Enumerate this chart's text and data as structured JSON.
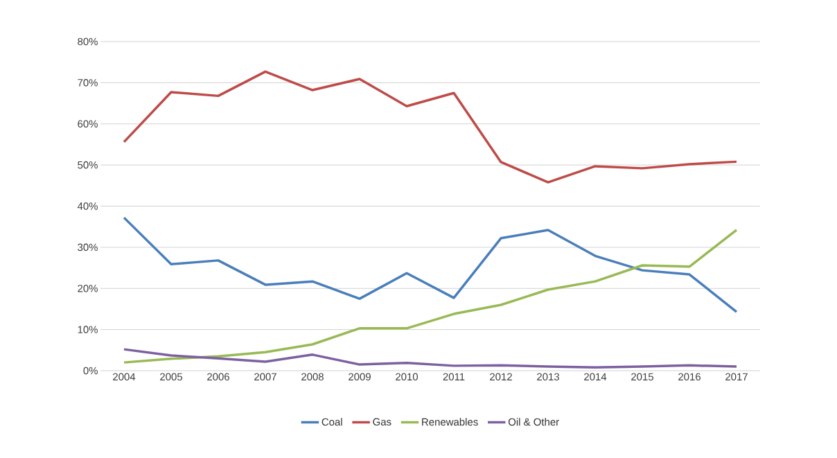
{
  "chart_data": {
    "type": "line",
    "categories": [
      "2004",
      "2005",
      "2006",
      "2007",
      "2008",
      "2009",
      "2010",
      "2011",
      "2012",
      "2013",
      "2014",
      "2015",
      "2016",
      "2017"
    ],
    "series": [
      {
        "name": "Coal",
        "color": "#4a7ebb",
        "values": [
          37.2,
          25.9,
          26.8,
          20.9,
          21.7,
          17.5,
          23.7,
          17.7,
          32.2,
          34.2,
          27.9,
          24.4,
          23.4,
          14.3
        ]
      },
      {
        "name": "Gas",
        "color": "#be4b48",
        "values": [
          55.6,
          67.7,
          66.8,
          72.7,
          68.2,
          70.9,
          64.3,
          67.5,
          50.7,
          45.8,
          49.7,
          49.2,
          50.2,
          50.8
        ]
      },
      {
        "name": "Renewables",
        "color": "#98b954",
        "values": [
          2.0,
          2.9,
          3.5,
          4.5,
          6.4,
          10.3,
          10.3,
          13.8,
          16.0,
          19.7,
          21.7,
          25.6,
          25.3,
          34.2
        ]
      },
      {
        "name": "Oil & Other",
        "color": "#7d60a0",
        "values": [
          5.2,
          3.7,
          3.0,
          2.2,
          3.9,
          1.5,
          1.9,
          1.2,
          1.3,
          1.0,
          0.8,
          1.0,
          1.3,
          1.0
        ]
      }
    ],
    "ylim": [
      0,
      80
    ],
    "yticks": [
      {
        "value": 0,
        "label": "0%"
      },
      {
        "value": 10,
        "label": "10%"
      },
      {
        "value": 20,
        "label": "20%"
      },
      {
        "value": 30,
        "label": "30%"
      },
      {
        "value": 40,
        "label": "40%"
      },
      {
        "value": 50,
        "label": "50%"
      },
      {
        "value": 60,
        "label": "60%"
      },
      {
        "value": 70,
        "label": "70%"
      },
      {
        "value": 80,
        "label": "80%"
      }
    ],
    "grid": "y",
    "legend": "bottom",
    "marker": "none",
    "line_style": "solid"
  }
}
